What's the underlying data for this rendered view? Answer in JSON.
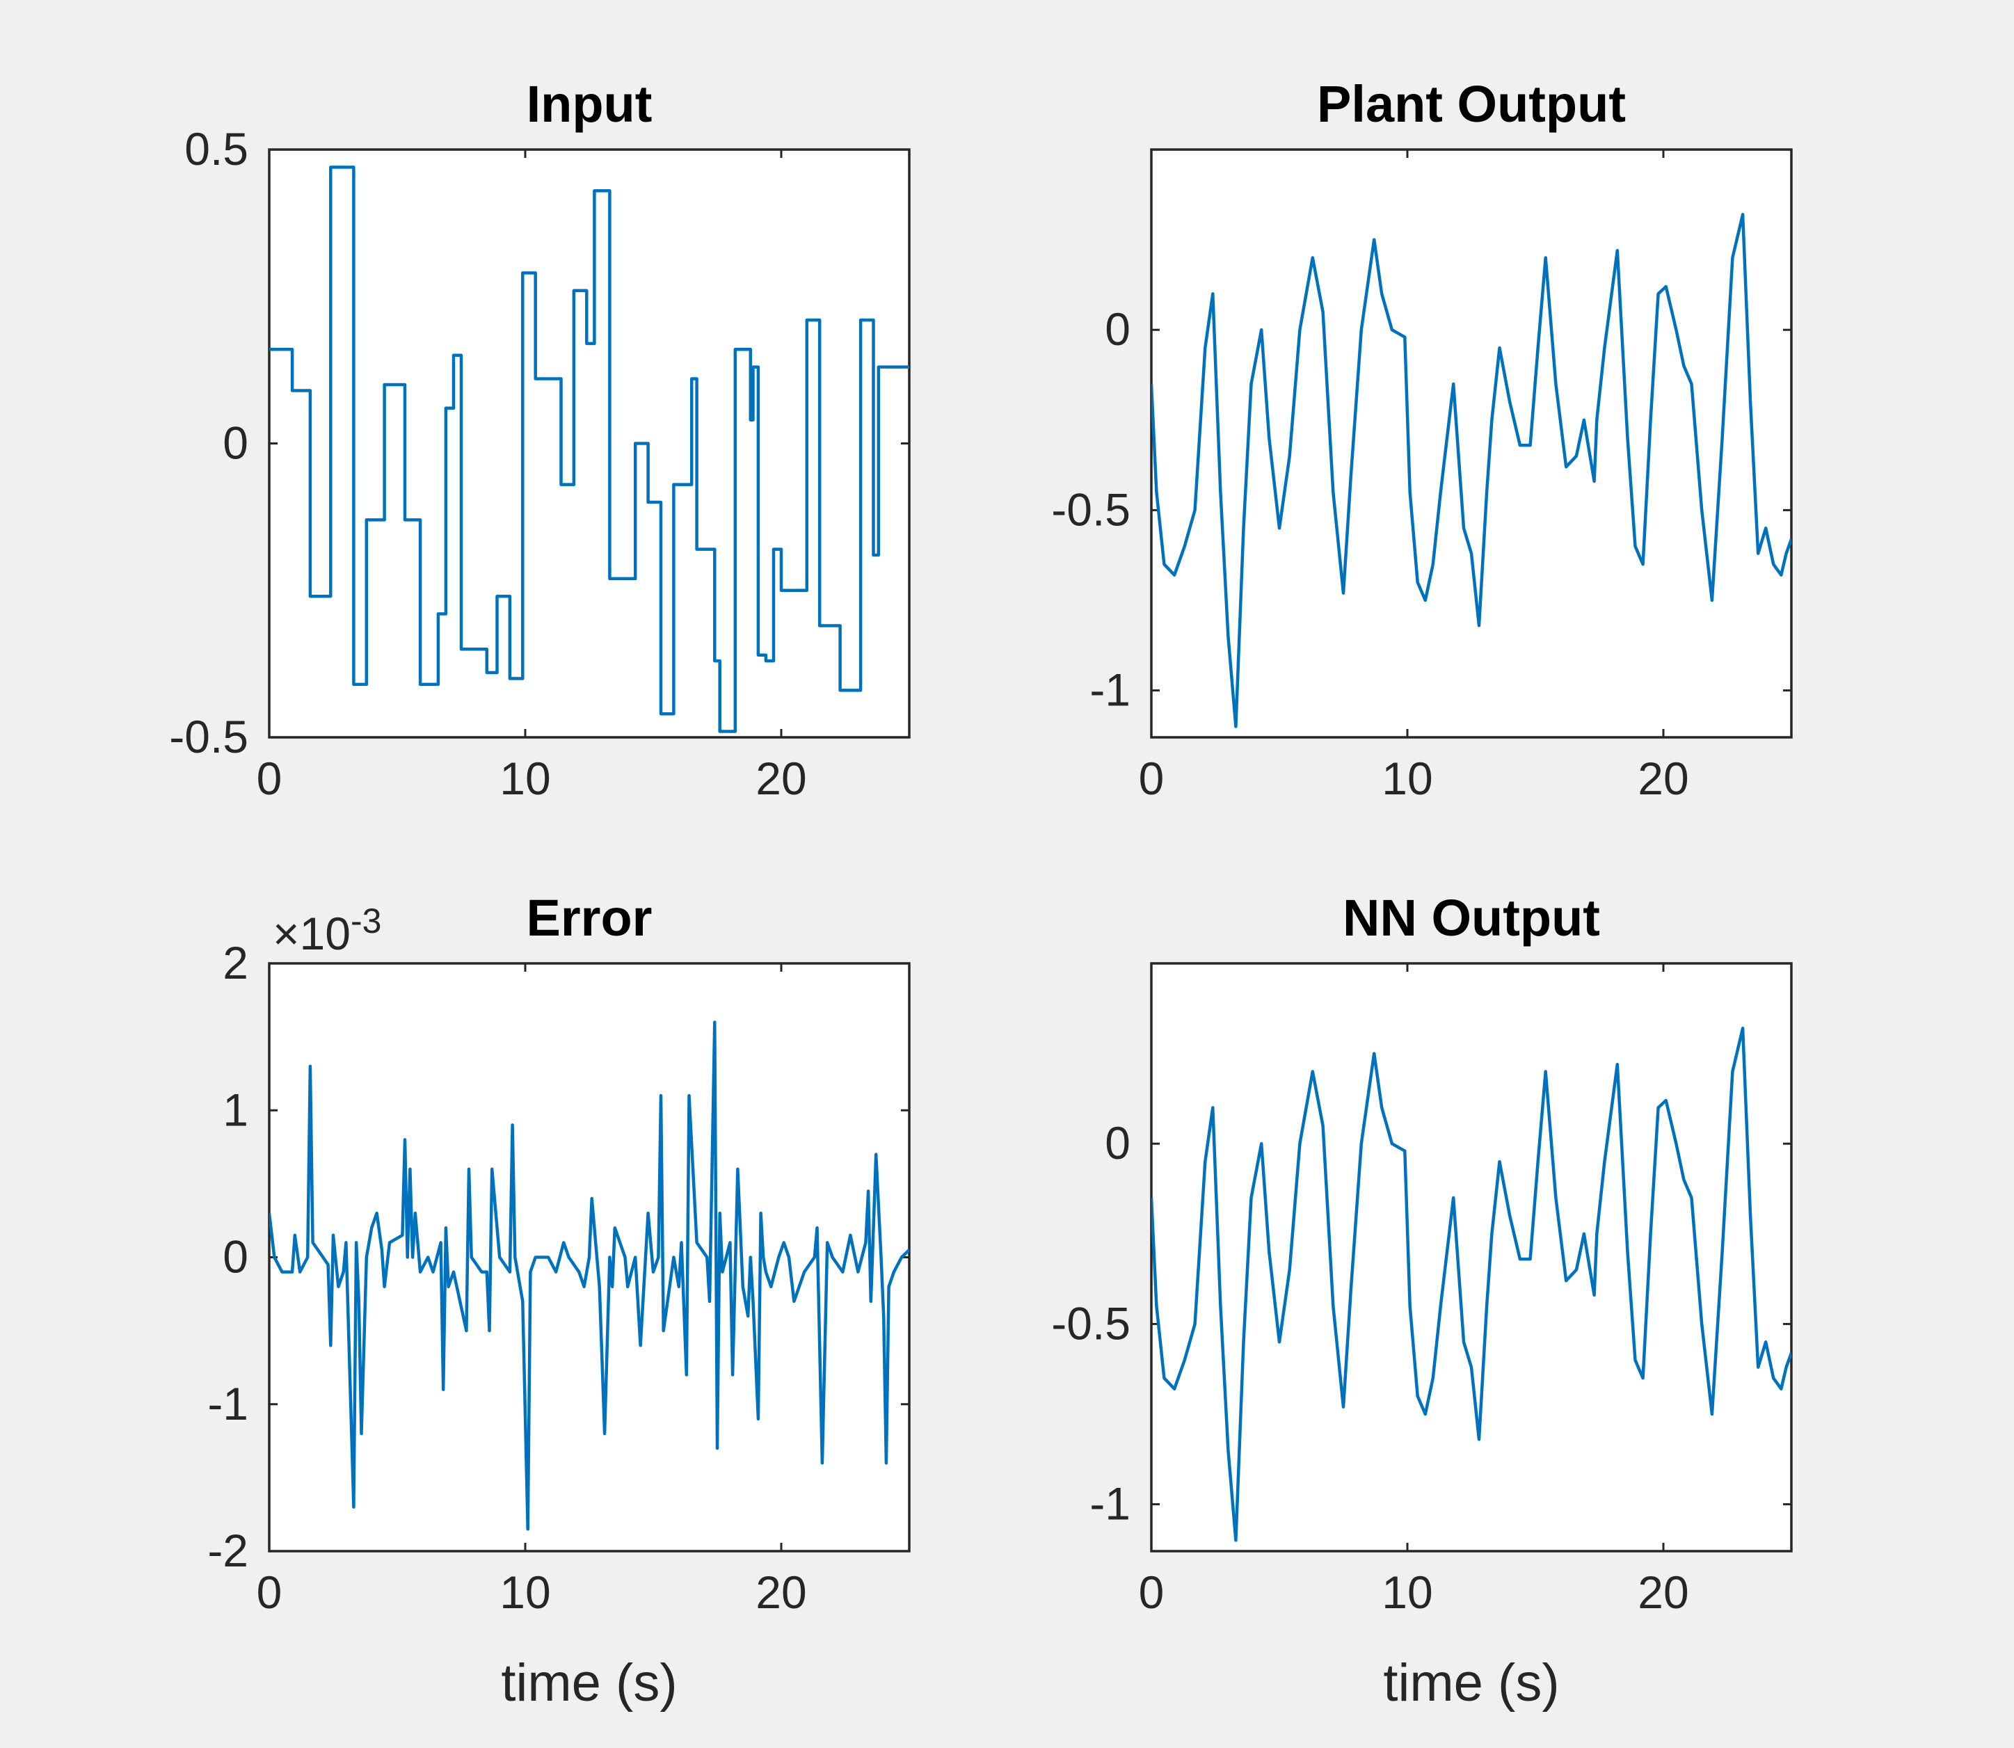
{
  "figure": {
    "background": "#f0f0f0",
    "line_color": "#0072bd"
  },
  "chart_data": [
    {
      "type": "line",
      "title": "Input",
      "xlabel": "",
      "ylabel": "",
      "xlim": [
        0,
        25
      ],
      "ylim": [
        -0.5,
        0.5
      ],
      "xticks": [
        0,
        10,
        20
      ],
      "xtick_labels": [
        "0",
        "10",
        "20"
      ],
      "yticks": [
        -0.5,
        0,
        0.5
      ],
      "ytick_labels": [
        "-0.5",
        "0",
        "0.5"
      ],
      "grid": false,
      "series": [
        {
          "name": "Input",
          "step": true,
          "x": [
            0,
            0.9,
            1.6,
            2.4,
            3.3,
            3.8,
            4.5,
            5.3,
            5.5,
            5.6,
            5.9,
            6.6,
            6.9,
            7.2,
            7.5,
            8,
            8.5,
            8.9,
            9.4,
            9.9,
            10.4,
            11.4,
            11.9,
            12.4,
            12.5,
            12.7,
            12.9,
            13.3,
            14.3,
            14.8,
            15.1,
            15.3,
            15.4,
            15.8,
            16.1,
            16.4,
            16.5,
            16.7,
            17.4,
            17.6,
            18.2,
            18.8,
            18.9,
            19.1,
            19.4,
            19.7,
            20,
            21,
            21.5,
            22.3,
            22.7,
            23.1,
            23.6,
            23.8,
            24.2,
            25
          ],
          "y": [
            0.16,
            0.09,
            -0.26,
            0.47,
            -0.41,
            -0.13,
            0.1,
            -0.13,
            -0.13,
            -0.13,
            -0.41,
            -0.29,
            0.06,
            0.15,
            -0.35,
            -0.35,
            -0.39,
            -0.26,
            -0.4,
            0.29,
            0.11,
            -0.07,
            0.26,
            0.17,
            0.17,
            0.43,
            0.43,
            -0.23,
            0,
            -0.1,
            -0.1,
            -0.46,
            -0.46,
            -0.07,
            -0.07,
            -0.07,
            0.11,
            -0.18,
            -0.37,
            -0.49,
            0.16,
            0.04,
            0.13,
            -0.36,
            -0.37,
            -0.18,
            -0.25,
            0.21,
            -0.31,
            -0.42,
            -0.42,
            0.21,
            -0.19,
            0.13,
            0.13,
            0.13
          ]
        }
      ]
    },
    {
      "type": "line",
      "title": "Plant Output",
      "xlabel": "",
      "ylabel": "",
      "xlim": [
        0,
        25
      ],
      "ylim": [
        -1.13,
        0.5
      ],
      "xticks": [
        0,
        10,
        20
      ],
      "xtick_labels": [
        "0",
        "10",
        "20"
      ],
      "yticks": [
        -1,
        -0.5,
        0
      ],
      "ytick_labels": [
        "-1",
        "-0.5",
        "0"
      ],
      "grid": false,
      "series": [
        {
          "name": "Plant Output",
          "x": [
            0,
            0.2,
            0.5,
            0.9,
            1.3,
            1.7,
            2.1,
            2.4,
            2.7,
            3,
            3.3,
            3.6,
            3.9,
            4.3,
            4.6,
            5,
            5.4,
            5.8,
            6.3,
            6.7,
            7.1,
            7.5,
            7.8,
            8.2,
            8.7,
            9,
            9.4,
            9.9,
            10.1,
            10.4,
            10.7,
            11,
            11.3,
            11.8,
            12.2,
            12.5,
            12.8,
            13.1,
            13.3,
            13.6,
            14,
            14.4,
            14.8,
            15.1,
            15.4,
            15.8,
            16.2,
            16.6,
            16.9,
            17.3,
            17.4,
            17.7,
            18.2,
            18.6,
            18.9,
            19.2,
            19.5,
            19.8,
            20.1,
            20.5,
            20.8,
            21.1,
            21.5,
            21.9,
            22.3,
            22.7,
            23.1,
            23.4,
            23.7,
            24,
            24.3,
            24.6,
            24.8,
            25
          ],
          "y": [
            -0.15,
            -0.45,
            -0.65,
            -0.68,
            -0.6,
            -0.5,
            -0.05,
            0.1,
            -0.45,
            -0.85,
            -1.1,
            -0.55,
            -0.15,
            0,
            -0.3,
            -0.55,
            -0.35,
            0,
            0.2,
            0.05,
            -0.45,
            -0.73,
            -0.4,
            0,
            0.25,
            0.1,
            0,
            -0.02,
            -0.45,
            -0.7,
            -0.75,
            -0.65,
            -0.45,
            -0.15,
            -0.55,
            -0.62,
            -0.82,
            -0.45,
            -0.25,
            -0.05,
            -0.2,
            -0.32,
            -0.32,
            -0.05,
            0.2,
            -0.15,
            -0.38,
            -0.35,
            -0.25,
            -0.42,
            -0.25,
            -0.05,
            0.22,
            -0.3,
            -0.6,
            -0.65,
            -0.25,
            0.1,
            0.12,
            0,
            -0.1,
            -0.15,
            -0.5,
            -0.75,
            -0.3,
            0.2,
            0.32,
            -0.2,
            -0.62,
            -0.55,
            -0.65,
            -0.68,
            -0.62,
            -0.58
          ]
        }
      ]
    },
    {
      "type": "line",
      "title": "Error",
      "exponent_label": "×10",
      "exponent_power": "-3",
      "xlabel": "time (s)",
      "ylabel": "",
      "xlim": [
        0,
        25
      ],
      "ylim": [
        -2,
        2
      ],
      "xticks": [
        0,
        10,
        20
      ],
      "xtick_labels": [
        "0",
        "10",
        "20"
      ],
      "yticks": [
        -2,
        -1,
        0,
        1,
        2
      ],
      "ytick_labels": [
        "-2",
        "-1",
        "0",
        "1",
        "2"
      ],
      "grid": false,
      "series": [
        {
          "name": "Error (×10^-3)",
          "x": [
            0,
            0.2,
            0.5,
            0.9,
            1,
            1.2,
            1.5,
            1.6,
            1.7,
            2.1,
            2.3,
            2.4,
            2.5,
            2.7,
            2.9,
            3,
            3.3,
            3.4,
            3.5,
            3.6,
            3.8,
            4,
            4.2,
            4.4,
            4.5,
            4.7,
            5.2,
            5.3,
            5.4,
            5.5,
            5.6,
            5.7,
            5.9,
            6.2,
            6.4,
            6.7,
            6.8,
            6.9,
            7,
            7.2,
            7.7,
            7.8,
            7.9,
            8.3,
            8.5,
            8.6,
            8.7,
            9,
            9.4,
            9.5,
            9.6,
            9.9,
            10.1,
            10.2,
            10.4,
            10.9,
            11.2,
            11.5,
            11.7,
            12.1,
            12.3,
            12.5,
            12.6,
            12.9,
            13.1,
            13.3,
            13.4,
            13.5,
            13.9,
            14,
            14.3,
            14.5,
            14.8,
            15,
            15.2,
            15.3,
            15.4,
            15.8,
            16,
            16.1,
            16.3,
            16.4,
            16.7,
            17.1,
            17.2,
            17.4,
            17.5,
            17.6,
            17.7,
            18,
            18.1,
            18.3,
            18.5,
            18.7,
            18.8,
            18.9,
            19.1,
            19.2,
            19.3,
            19.4,
            19.6,
            19.9,
            20.1,
            20.3,
            20.5,
            20.9,
            21.3,
            21.4,
            21.6,
            21.8,
            22,
            22.4,
            22.7,
            23,
            23.3,
            23.4,
            23.5,
            23.7,
            23.9,
            24,
            24.1,
            24.2,
            24.4,
            24.7,
            25
          ],
          "y": [
            0.3,
            0,
            -0.1,
            -0.1,
            0.15,
            -0.1,
            0,
            1.3,
            0.1,
            0,
            -0.05,
            -0.6,
            0.15,
            -0.2,
            -0.1,
            0.1,
            -1.7,
            0.1,
            -0.3,
            -1.2,
            0,
            0.2,
            0.3,
            0.05,
            -0.2,
            0.1,
            0.15,
            0.8,
            0,
            0.6,
            0,
            0.3,
            -0.1,
            0,
            -0.1,
            0.1,
            -0.9,
            0.2,
            -0.2,
            -0.1,
            -0.5,
            0.6,
            0,
            -0.1,
            -0.1,
            -0.5,
            0.6,
            0,
            -0.1,
            0.9,
            0,
            -0.3,
            -1.85,
            -0.1,
            0,
            0,
            -0.1,
            0.1,
            0,
            -0.1,
            -0.2,
            0,
            0.4,
            -0.2,
            -1.2,
            0,
            -0.2,
            0.2,
            0,
            -0.2,
            0,
            -0.6,
            0.3,
            -0.1,
            0,
            1.1,
            -0.5,
            0,
            -0.2,
            0.1,
            -0.8,
            1.1,
            0.1,
            0,
            -0.3,
            1.6,
            -1.3,
            0.3,
            -0.1,
            0.1,
            -0.8,
            0.6,
            -0.2,
            -0.4,
            0,
            -0.3,
            -1.1,
            0.3,
            0,
            -0.1,
            -0.2,
            0,
            0.1,
            0,
            -0.3,
            -0.1,
            0,
            0.2,
            -1.4,
            0.1,
            0,
            -0.1,
            0.15,
            -0.1,
            0.1,
            0.45,
            -0.3,
            0.7,
            0,
            -0.4,
            -1.4,
            -0.2,
            -0.1,
            0,
            0.05
          ]
        }
      ]
    },
    {
      "type": "line",
      "title": "NN Output",
      "xlabel": "time (s)",
      "ylabel": "",
      "xlim": [
        0,
        25
      ],
      "ylim": [
        -1.13,
        0.5
      ],
      "xticks": [
        0,
        10,
        20
      ],
      "xtick_labels": [
        "0",
        "10",
        "20"
      ],
      "yticks": [
        -1,
        -0.5,
        0
      ],
      "ytick_labels": [
        "-1",
        "-0.5",
        "0"
      ],
      "grid": false,
      "series": [
        {
          "name": "NN Output",
          "x": [
            0,
            0.2,
            0.5,
            0.9,
            1.3,
            1.7,
            2.1,
            2.4,
            2.7,
            3,
            3.3,
            3.6,
            3.9,
            4.3,
            4.6,
            5,
            5.4,
            5.8,
            6.3,
            6.7,
            7.1,
            7.5,
            7.8,
            8.2,
            8.7,
            9,
            9.4,
            9.9,
            10.1,
            10.4,
            10.7,
            11,
            11.3,
            11.8,
            12.2,
            12.5,
            12.8,
            13.1,
            13.3,
            13.6,
            14,
            14.4,
            14.8,
            15.1,
            15.4,
            15.8,
            16.2,
            16.6,
            16.9,
            17.3,
            17.4,
            17.7,
            18.2,
            18.6,
            18.9,
            19.2,
            19.5,
            19.8,
            20.1,
            20.5,
            20.8,
            21.1,
            21.5,
            21.9,
            22.3,
            22.7,
            23.1,
            23.4,
            23.7,
            24,
            24.3,
            24.6,
            24.8,
            25
          ],
          "y": [
            -0.15,
            -0.45,
            -0.65,
            -0.68,
            -0.6,
            -0.5,
            -0.05,
            0.1,
            -0.45,
            -0.85,
            -1.1,
            -0.55,
            -0.15,
            0,
            -0.3,
            -0.55,
            -0.35,
            0,
            0.2,
            0.05,
            -0.45,
            -0.73,
            -0.4,
            0,
            0.25,
            0.1,
            0,
            -0.02,
            -0.45,
            -0.7,
            -0.75,
            -0.65,
            -0.45,
            -0.15,
            -0.55,
            -0.62,
            -0.82,
            -0.45,
            -0.25,
            -0.05,
            -0.2,
            -0.32,
            -0.32,
            -0.05,
            0.2,
            -0.15,
            -0.38,
            -0.35,
            -0.25,
            -0.42,
            -0.25,
            -0.05,
            0.22,
            -0.3,
            -0.6,
            -0.65,
            -0.25,
            0.1,
            0.12,
            0,
            -0.1,
            -0.15,
            -0.5,
            -0.75,
            -0.3,
            0.2,
            0.32,
            -0.2,
            -0.62,
            -0.55,
            -0.65,
            -0.68,
            -0.62,
            -0.58
          ]
        }
      ]
    }
  ]
}
